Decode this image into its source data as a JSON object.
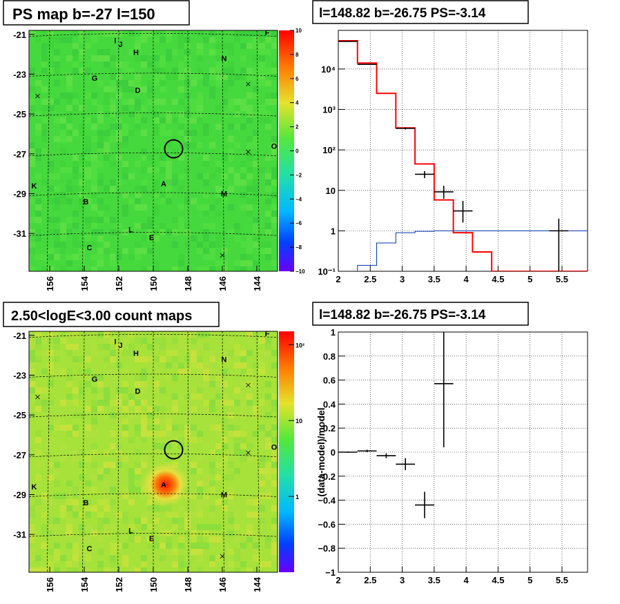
{
  "colors": {
    "map_background": "#46d93e",
    "data_points": "#000000",
    "model_line": "#ff0000",
    "background_line": "#0033aa"
  },
  "panels": {
    "top_left": {
      "title": "PS map b=-27 l=150"
    },
    "top_right": {
      "title": "l=148.82 b=-26.75 PS=-3.14"
    },
    "bottom_left": {
      "title": "2.50<logE<3.00 count maps"
    },
    "bottom_right": {
      "title": "l=148.82 b=-26.75 PS=-3.14"
    }
  },
  "map_axes": {
    "x_ticks": [
      "156",
      "154",
      "152",
      "150",
      "148",
      "146",
      "144"
    ],
    "x_tick_values": [
      156,
      154,
      152,
      150,
      148,
      146,
      144
    ],
    "y_ticks": [
      "-21",
      "-23",
      "-25",
      "-27",
      "-29",
      "-31"
    ],
    "y_tick_values": [
      -21,
      -23,
      -25,
      -27,
      -29,
      -31
    ],
    "x_range": [
      157.2,
      142.8
    ],
    "y_range": [
      -20.8,
      -32.9
    ]
  },
  "map_labels": [
    {
      "text": "I",
      "l": 152.2,
      "b": -21.3
    },
    {
      "text": "J",
      "l": 151.9,
      "b": -21.5
    },
    {
      "text": "F",
      "l": 143.4,
      "b": -20.9
    },
    {
      "text": "H",
      "l": 151.0,
      "b": -21.9
    },
    {
      "text": "N",
      "l": 145.9,
      "b": -22.2
    },
    {
      "text": "G",
      "l": 153.4,
      "b": -23.2
    },
    {
      "text": "D",
      "l": 150.9,
      "b": -23.8
    },
    {
      "text": "O",
      "l": 143.0,
      "b": -26.6
    },
    {
      "text": "A",
      "l": 149.4,
      "b": -28.5
    },
    {
      "text": "M",
      "l": 145.9,
      "b": -29.0
    },
    {
      "text": "K",
      "l": 156.9,
      "b": -28.6
    },
    {
      "text": "B",
      "l": 153.9,
      "b": -29.4
    },
    {
      "text": "L",
      "l": 151.3,
      "b": -30.8
    },
    {
      "text": "E",
      "l": 150.1,
      "b": -31.2
    },
    {
      "text": "C",
      "l": 153.7,
      "b": -31.7
    }
  ],
  "map_crosses": [
    {
      "l": 156.7,
      "b": -24.1
    },
    {
      "l": 144.5,
      "b": -23.5
    },
    {
      "l": 144.5,
      "b": -26.9
    },
    {
      "l": 146.0,
      "b": -32.1
    }
  ],
  "source_circle": {
    "l": 148.82,
    "b": -26.75,
    "radius_deg": 0.52
  },
  "colorbar_ps": {
    "ticks": [
      "10",
      "8",
      "6",
      "4",
      "2",
      "0",
      "−2",
      "−4",
      "−6",
      "−8",
      "−10"
    ],
    "range": [
      -10,
      10
    ]
  },
  "colorbar_counts": {
    "ticks": [
      "10²",
      "10",
      "1"
    ],
    "tick_values": [
      100,
      10,
      1
    ],
    "range": [
      0.1,
      150
    ]
  },
  "chart_data": [
    {
      "type": "heatmap",
      "title": "PS map b=-27 l=150",
      "x_ticks": [
        156,
        154,
        152,
        150,
        148,
        146,
        144
      ],
      "y_ticks": [
        -21,
        -23,
        -25,
        -27,
        -29,
        -31
      ],
      "z_range": [
        -10,
        10
      ],
      "typical_value": 0
    },
    {
      "type": "line",
      "title": "l=148.82 b=-26.75 PS=-3.14",
      "x_ticks": [
        "2",
        "2.5",
        "3",
        "3.5",
        "4",
        "4.5",
        "5",
        "5.5"
      ],
      "x_tick_values": [
        2,
        2.5,
        3,
        3.5,
        4,
        4.5,
        5,
        5.5
      ],
      "y_ticks": [
        "10⁻¹",
        "1",
        "10",
        "10²",
        "10³",
        "10⁴"
      ],
      "y_tick_values": [
        0.1,
        1,
        10,
        100,
        1000,
        10000
      ],
      "xlim": [
        2,
        5.9
      ],
      "ylim": [
        0.1,
        90000
      ],
      "log_y": true,
      "grid": true,
      "bin_edges": [
        2,
        2.3,
        2.6,
        2.9,
        3.2,
        3.5,
        3.8,
        4.1,
        4.4,
        4.7,
        5.0,
        5.3,
        5.6,
        5.9
      ],
      "series": [
        {
          "style": "red-step",
          "values": [
            50000,
            14000,
            2500,
            350,
            45,
            5.8,
            0.9,
            0.3,
            0.1,
            0.1,
            0.1,
            0.1,
            0.1
          ]
        },
        {
          "style": "blue-step",
          "values": [
            0.09,
            0.14,
            0.5,
            0.9,
            0.97,
            1.0,
            1.0,
            1.0,
            1.0,
            1.0,
            1.0,
            1.0,
            1.0
          ]
        }
      ],
      "points": [
        {
          "x": 2.15,
          "y": 48000,
          "xerr": 0.15,
          "ylo": 47000,
          "yhi": 49000
        },
        {
          "x": 2.45,
          "y": 13000,
          "xerr": 0.15,
          "ylo": 12700,
          "yhi": 13300
        },
        {
          "x": 3.05,
          "y": 340,
          "xerr": 0.15,
          "ylo": 320,
          "yhi": 360
        },
        {
          "x": 3.35,
          "y": 25,
          "xerr": 0.15,
          "ylo": 20,
          "yhi": 30
        },
        {
          "x": 3.65,
          "y": 9.2,
          "xerr": 0.15,
          "ylo": 6.2,
          "yhi": 13
        },
        {
          "x": 3.95,
          "y": 3.1,
          "xerr": 0.15,
          "ylo": 1.6,
          "yhi": 5.5
        },
        {
          "x": 5.45,
          "y": 1.0,
          "xerr": 0.15,
          "ylo": 0.1,
          "yhi": 2.0
        }
      ]
    },
    {
      "type": "heatmap",
      "title": "2.50<logE<3.00 count maps",
      "x_ticks": [
        156,
        154,
        152,
        150,
        148,
        146,
        144
      ],
      "y_ticks": [
        -21,
        -23,
        -25,
        -27,
        -29,
        -31
      ],
      "z_range": [
        0.1,
        150
      ],
      "log_z": true,
      "hotspot": {
        "l": 149.3,
        "b": -28.5,
        "value": 100
      }
    },
    {
      "type": "scatter",
      "title": "l=148.82 b=-26.75 PS=-3.14",
      "ylabel": "(data-model)/model",
      "x_ticks": [
        "2",
        "2.5",
        "3",
        "3.5",
        "4",
        "4.5",
        "5",
        "5.5"
      ],
      "x_tick_values": [
        2,
        2.5,
        3,
        3.5,
        4,
        4.5,
        5,
        5.5
      ],
      "y_ticks": [
        "−1",
        "−0.8",
        "−0.6",
        "−0.4",
        "−0.2",
        "0",
        "0.2",
        "0.4",
        "0.6",
        "0.8",
        "1"
      ],
      "y_tick_values": [
        -1,
        -0.8,
        -0.6,
        -0.4,
        -0.2,
        0,
        0.2,
        0.4,
        0.6,
        0.8,
        1
      ],
      "xlim": [
        2,
        5.9
      ],
      "ylim": [
        -1,
        1
      ],
      "grid": true,
      "points": [
        {
          "x": 2.15,
          "y": 0.0,
          "xerr": 0.15,
          "ylo": -0.005,
          "yhi": 0.005
        },
        {
          "x": 2.45,
          "y": 0.01,
          "xerr": 0.15,
          "ylo": 0.0,
          "yhi": 0.02
        },
        {
          "x": 2.75,
          "y": -0.03,
          "xerr": 0.15,
          "ylo": -0.05,
          "yhi": -0.01
        },
        {
          "x": 3.05,
          "y": -0.1,
          "xerr": 0.15,
          "ylo": -0.15,
          "yhi": -0.05
        },
        {
          "x": 3.35,
          "y": -0.44,
          "xerr": 0.15,
          "ylo": -0.55,
          "yhi": -0.33
        },
        {
          "x": 3.65,
          "y": 0.57,
          "xerr": 0.15,
          "ylo": 0.04,
          "yhi": 1.0
        }
      ]
    }
  ]
}
